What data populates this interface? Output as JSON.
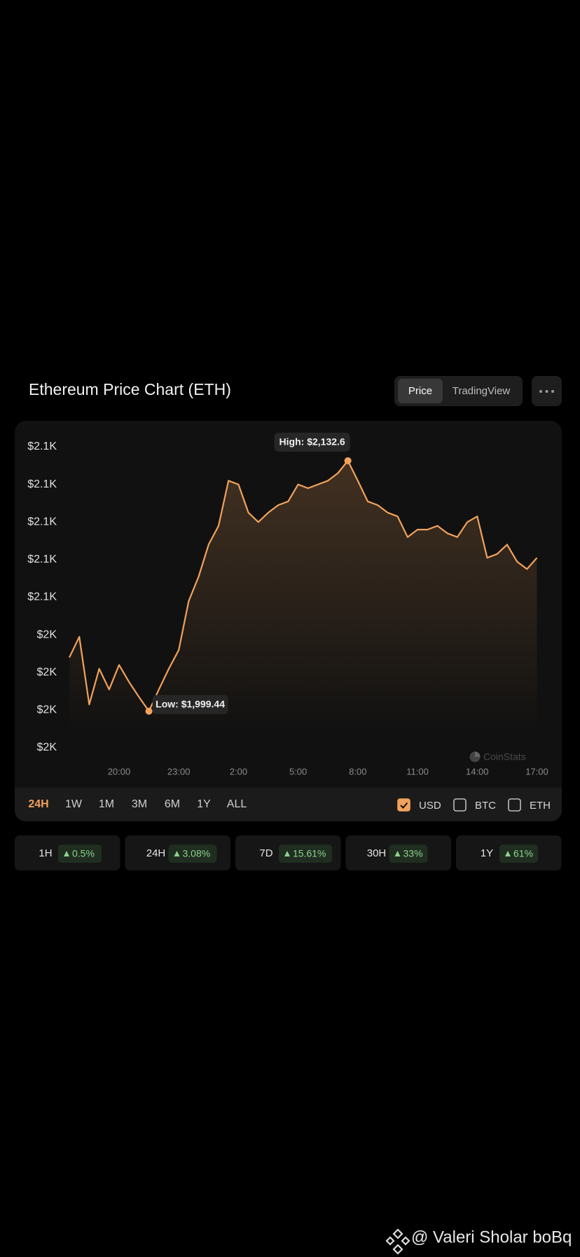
{
  "header": {
    "title": "Ethereum Price Chart (ETH)",
    "view_tabs": [
      "Price",
      "TradingView"
    ]
  },
  "chart_data": {
    "type": "line",
    "color": "#f2a25c",
    "x": [
      17.5,
      18,
      18.5,
      19,
      19.5,
      20,
      20.5,
      21,
      21.5,
      22,
      22.5,
      23,
      23.5,
      24,
      24.5,
      25,
      25.5,
      26,
      26.5,
      27,
      27.5,
      28,
      28.5,
      29,
      29.5,
      30,
      30.5,
      31,
      31.5,
      32,
      32.5,
      33,
      33.5,
      34,
      34.5,
      35,
      35.5,
      36,
      36.5,
      37,
      37.5,
      38,
      38.5,
      39,
      39.5,
      40,
      40.5,
      41
    ],
    "values": [
      2028,
      2039,
      2003,
      2022,
      2011,
      2024,
      2015,
      2007,
      1999.44,
      2011,
      2022,
      2032,
      2058,
      2071,
      2088,
      2098,
      2122,
      2120,
      2105,
      2100,
      2105,
      2109,
      2111,
      2120,
      2118,
      2120,
      2122,
      2126,
      2132.6,
      2122,
      2111,
      2109,
      2105,
      2103,
      2092,
      2096,
      2096,
      2098,
      2094,
      2092,
      2100,
      2103,
      2081,
      2083,
      2088,
      2079,
      2075,
      2081
    ],
    "xlim": [
      17.3,
      41.3
    ],
    "xticks": [
      {
        "value": 20,
        "label": "20:00"
      },
      {
        "value": 23,
        "label": "23:00"
      },
      {
        "value": 26,
        "label": "2:00"
      },
      {
        "value": 29,
        "label": "5:00"
      },
      {
        "value": 32,
        "label": "8:00"
      },
      {
        "value": 35,
        "label": "11:00"
      },
      {
        "value": 38,
        "label": "14:00"
      },
      {
        "value": 41,
        "label": "17:00"
      }
    ],
    "ylim": [
      1980,
      2140
    ],
    "yticks": [
      {
        "value": 2140,
        "label": "$2.1K"
      },
      {
        "value": 2120,
        "label": "$2.1K"
      },
      {
        "value": 2100,
        "label": "$2.1K"
      },
      {
        "value": 2080,
        "label": "$2.1K"
      },
      {
        "value": 2060,
        "label": "$2.1K"
      },
      {
        "value": 2040,
        "label": "$2K"
      },
      {
        "value": 2020,
        "label": "$2K"
      },
      {
        "value": 2000,
        "label": "$2K"
      },
      {
        "value": 1980,
        "label": "$2K"
      }
    ],
    "annotations": [
      {
        "text": "High: $2,132.6",
        "x": 31.5,
        "y": 2132.6
      },
      {
        "text": "Low: $1,999.44",
        "x": 21.5,
        "y": 1999.44
      }
    ],
    "watermark": "CoinStats"
  },
  "range_tabs": [
    "24H",
    "1W",
    "1M",
    "3M",
    "6M",
    "1Y",
    "ALL"
  ],
  "currencies": [
    {
      "label": "USD",
      "checked": true
    },
    {
      "label": "BTC",
      "checked": false
    },
    {
      "label": "ETH",
      "checked": false
    }
  ],
  "changes": [
    {
      "period": "1H",
      "change": "0.5%"
    },
    {
      "period": "24H",
      "change": "3.08%"
    },
    {
      "period": "7D",
      "change": "15.61%"
    },
    {
      "period": "30H",
      "change": "33%"
    },
    {
      "period": "1Y",
      "change": "61%"
    }
  ],
  "footer": "@ Valeri Sholar boBq"
}
